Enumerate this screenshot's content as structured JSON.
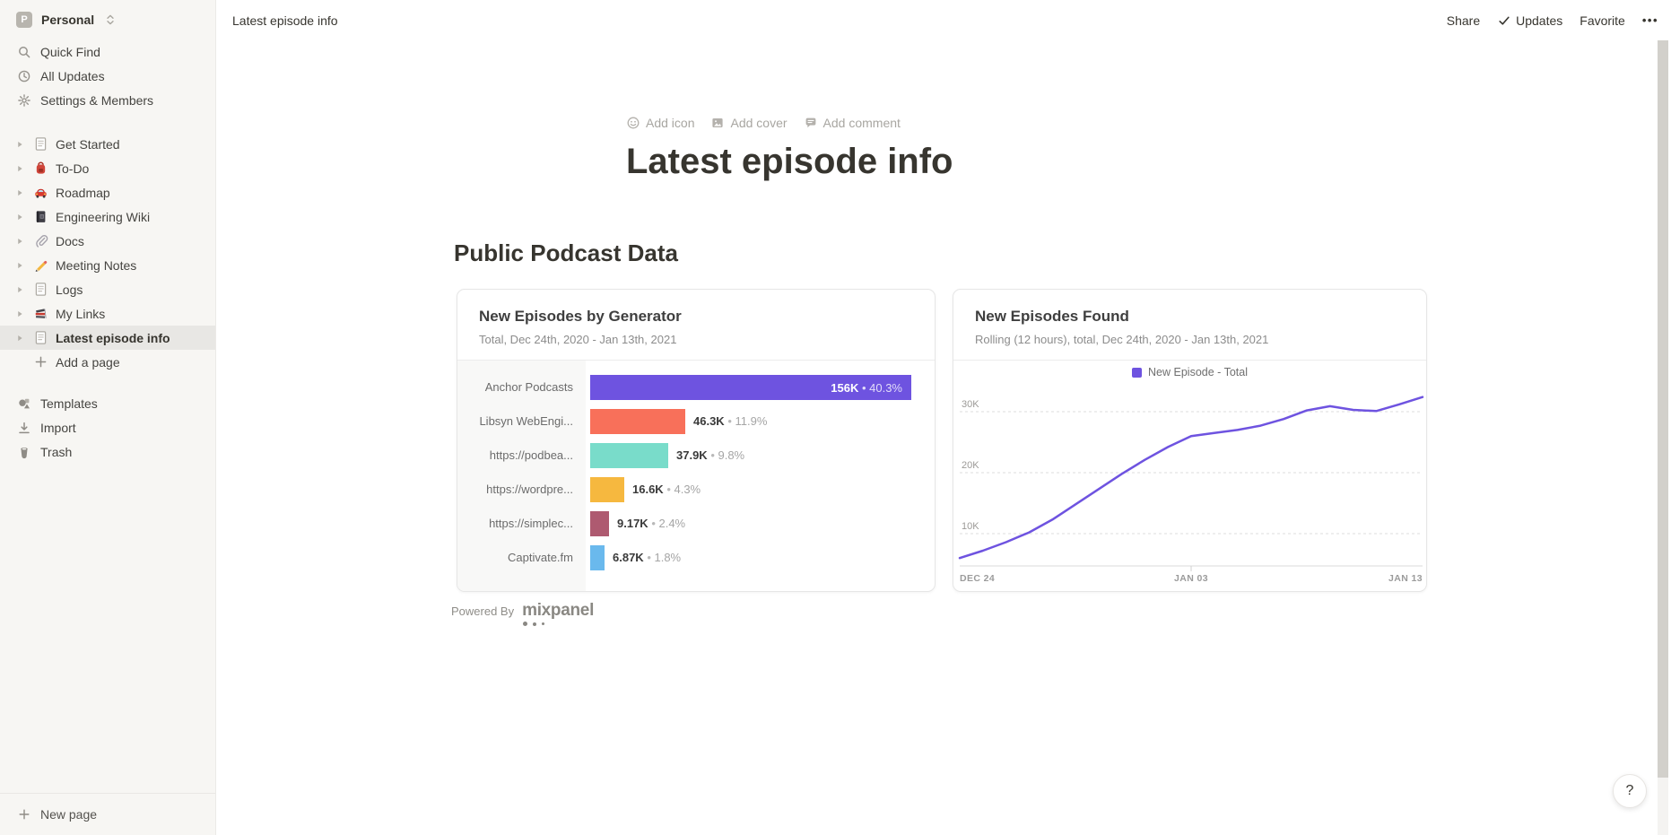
{
  "workspace": {
    "avatar_letter": "P",
    "name": "Personal"
  },
  "sidebar": {
    "menu": [
      {
        "icon": "search-icon",
        "label": "Quick Find"
      },
      {
        "icon": "clock-icon",
        "label": "All Updates"
      },
      {
        "icon": "gear-icon",
        "label": "Settings & Members"
      }
    ],
    "pages": [
      {
        "icon": "page-icon",
        "label": "Get Started"
      },
      {
        "icon": "backpack-icon",
        "label": "To-Do"
      },
      {
        "icon": "car-icon",
        "label": "Roadmap"
      },
      {
        "icon": "notebook-icon",
        "label": "Engineering Wiki"
      },
      {
        "icon": "paperclip-icon",
        "label": "Docs"
      },
      {
        "icon": "pencil-icon",
        "label": "Meeting Notes"
      },
      {
        "icon": "page-icon",
        "label": "Logs"
      },
      {
        "icon": "books-icon",
        "label": "My Links"
      },
      {
        "icon": "page-icon",
        "label": "Latest episode info",
        "selected": true
      }
    ],
    "add_page_label": "Add a page",
    "footer": [
      {
        "icon": "templates-icon",
        "label": "Templates"
      },
      {
        "icon": "import-icon",
        "label": "Import"
      },
      {
        "icon": "trash-icon",
        "label": "Trash"
      }
    ],
    "new_page_label": "New page"
  },
  "topbar": {
    "breadcrumb": "Latest episode info",
    "share_label": "Share",
    "updates_label": "Updates",
    "favorite_label": "Favorite",
    "more_label": "•••"
  },
  "page": {
    "actions": [
      {
        "icon": "emoji-icon",
        "label": "Add icon"
      },
      {
        "icon": "image-icon",
        "label": "Add cover"
      },
      {
        "icon": "comment-icon",
        "label": "Add comment"
      }
    ],
    "title": "Latest episode info",
    "section_heading": "Public Podcast Data",
    "powered_by_label": "Powered By",
    "powered_by_brand": "mixpanel"
  },
  "help_button_label": "?",
  "chart_data": [
    {
      "type": "bar",
      "orientation": "horizontal",
      "title": "New Episodes by Generator",
      "subtitle": "Total, Dec 24th, 2020 - Jan 13th, 2021",
      "categories": [
        "Anchor Podcasts",
        "Libsyn WebEngi...",
        "https://podbea...",
        "https://wordpre...",
        "https://simplec...",
        "Captivate.fm"
      ],
      "values": [
        156000,
        46300,
        37900,
        16600,
        9170,
        6870
      ],
      "value_labels": [
        "156K",
        "46.3K",
        "37.9K",
        "16.6K",
        "9.17K",
        "6.87K"
      ],
      "percent_labels": [
        "40.3%",
        "11.9%",
        "9.8%",
        "4.3%",
        "2.4%",
        "1.8%"
      ],
      "bar_colors": [
        "#6e53e0",
        "#f8705a",
        "#79dcca",
        "#f6b83f",
        "#ae5a70",
        "#6ab9ed"
      ],
      "xlim": [
        0,
        160000
      ]
    },
    {
      "type": "line",
      "title": "New Episodes Found",
      "subtitle": "Rolling (12 hours), total, Dec 24th, 2020 - Jan 13th, 2021",
      "legend": [
        {
          "label": "New Episode - Total",
          "color": "#6e53e0"
        }
      ],
      "line_color": "#6e53e0",
      "x": [
        "Dec 24",
        "Dec 25",
        "Dec 26",
        "Dec 27",
        "Dec 28",
        "Dec 29",
        "Dec 30",
        "Dec 31",
        "Jan 01",
        "Jan 02",
        "Jan 03",
        "Jan 04",
        "Jan 05",
        "Jan 06",
        "Jan 07",
        "Jan 08",
        "Jan 09",
        "Jan 10",
        "Jan 11",
        "Jan 12",
        "Jan 13"
      ],
      "values": [
        6000,
        7200,
        8600,
        10200,
        12300,
        14800,
        17300,
        19800,
        22100,
        24200,
        26000,
        26500,
        27000,
        27700,
        28800,
        30200,
        30900,
        30300,
        30100,
        31200,
        32400
      ],
      "x_tick_labels": [
        "DEC 24",
        "JAN 03",
        "JAN 13"
      ],
      "y_tick_labels": [
        "10K",
        "20K",
        "30K"
      ],
      "ylim": [
        0,
        35000
      ],
      "grid": "dashed-horizontal",
      "legend_position": "top-center"
    }
  ]
}
